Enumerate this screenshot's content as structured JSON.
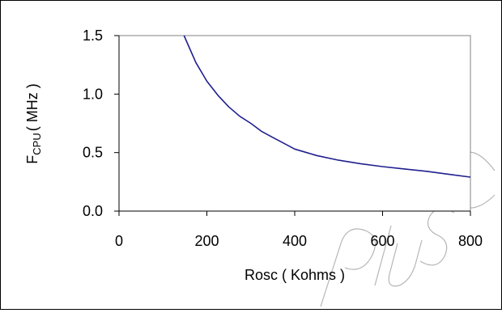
{
  "chart_data": {
    "type": "line",
    "title": "",
    "xlabel": "Rosc ( Kohms )",
    "ylabel_main": "F",
    "ylabel_sub": "CPU",
    "ylabel_rest": "( MHz )",
    "xlim": [
      0,
      800
    ],
    "ylim": [
      0,
      1.5
    ],
    "x_ticks": [
      "0",
      "200",
      "400",
      "600",
      "800"
    ],
    "y_ticks": [
      "0.0",
      "0.5",
      "1.0",
      "1.5"
    ],
    "x_tick_values": [
      0,
      200,
      400,
      600,
      800
    ],
    "y_tick_values": [
      0,
      0.5,
      1.0,
      1.5
    ],
    "grid": false,
    "legend": "none",
    "series": [
      {
        "color": "#1f1f8f",
        "x": [
          148,
          175,
          200,
          225,
          250,
          275,
          300,
          325,
          350,
          375,
          400,
          450,
          500,
          550,
          600,
          650,
          700,
          750,
          800
        ],
        "y": [
          1.5,
          1.27,
          1.11,
          0.99,
          0.89,
          0.81,
          0.75,
          0.68,
          0.63,
          0.58,
          0.53,
          0.475,
          0.435,
          0.405,
          0.38,
          0.36,
          0.34,
          0.315,
          0.29
        ]
      }
    ]
  },
  "colors": {
    "axis": "#000000",
    "plot_border": "#808080",
    "line": "#1f1f8f"
  },
  "watermark": "Plus"
}
